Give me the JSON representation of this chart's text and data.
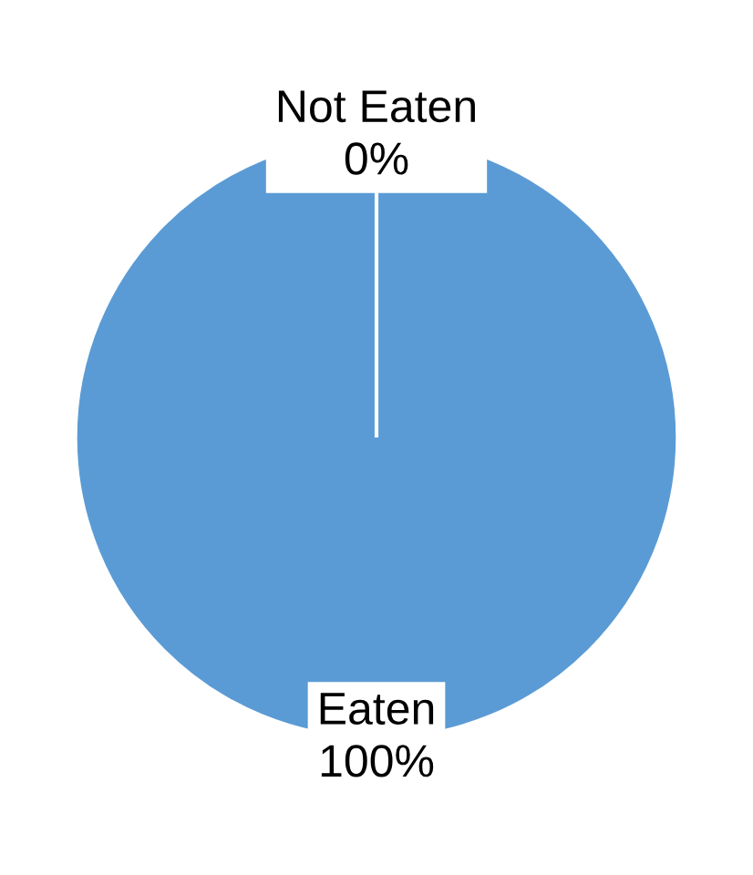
{
  "chart_data": {
    "type": "pie",
    "categories": [
      "Eaten",
      "Not Eaten"
    ],
    "values": [
      100,
      0
    ],
    "value_labels": [
      "100%",
      "0%"
    ],
    "colors": [
      "#5b9bd5",
      "#ed7d31"
    ]
  }
}
